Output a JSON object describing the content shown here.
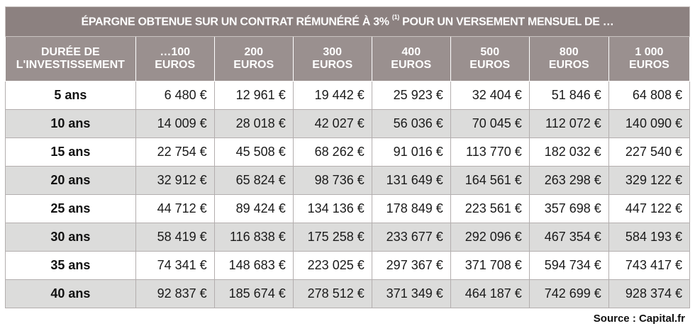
{
  "table": {
    "title": "ÉPARGNE OBTENUE SUR UN CONTRAT RÉMUNÉRÉ À 3%",
    "title_note": "(1)",
    "title_suffix": "POUR UN VERSEMENT MENSUEL DE …",
    "duration_header": [
      "DURÉE DE",
      "L'INVESTISSEMENT"
    ],
    "columns": [
      [
        "…100",
        "EUROS"
      ],
      [
        "200",
        "EUROS"
      ],
      [
        "300",
        "EUROS"
      ],
      [
        "400",
        "EUROS"
      ],
      [
        "500",
        "EUROS"
      ],
      [
        "800",
        "EUROS"
      ],
      [
        "1 000",
        "EUROS"
      ]
    ],
    "rows": [
      {
        "duration": "5 ans",
        "values": [
          "6 480 €",
          "12 961 €",
          "19 442 €",
          "25 923 €",
          "32 404 €",
          "51 846 €",
          "64 808 €"
        ]
      },
      {
        "duration": "10 ans",
        "values": [
          "14 009 €",
          "28 018 €",
          "42 027 €",
          "56 036 €",
          "70 045 €",
          "112 072 €",
          "140 090 €"
        ]
      },
      {
        "duration": "15 ans",
        "values": [
          "22 754 €",
          "45 508 €",
          "68 262 €",
          "91 016 €",
          "113 770 €",
          "182 032 €",
          "227 540 €"
        ]
      },
      {
        "duration": "20 ans",
        "values": [
          "32 912 €",
          "65 824 €",
          "98 736 €",
          "131 649 €",
          "164 561 €",
          "263 298 €",
          "329 122 €"
        ]
      },
      {
        "duration": "25 ans",
        "values": [
          "44 712 €",
          "89 424 €",
          "134 136 €",
          "178 849 €",
          "223 561 €",
          "357 698 €",
          "447 122 €"
        ]
      },
      {
        "duration": "30 ans",
        "values": [
          "58 419 €",
          "116 838 €",
          "175 258 €",
          "233 677 €",
          "292 096 €",
          "467 354 €",
          "584 193 €"
        ]
      },
      {
        "duration": "35 ans",
        "values": [
          "74 341 €",
          "148 683 €",
          "223 025 €",
          "297 367 €",
          "371 708 €",
          "594 734 €",
          "743 417 €"
        ]
      },
      {
        "duration": "40 ans",
        "values": [
          "92 837 €",
          "185 674 €",
          "278 512 €",
          "371 349 €",
          "464 187 €",
          "742 699 €",
          "928 374 €"
        ]
      }
    ]
  },
  "source": "Source : Capital.fr"
}
